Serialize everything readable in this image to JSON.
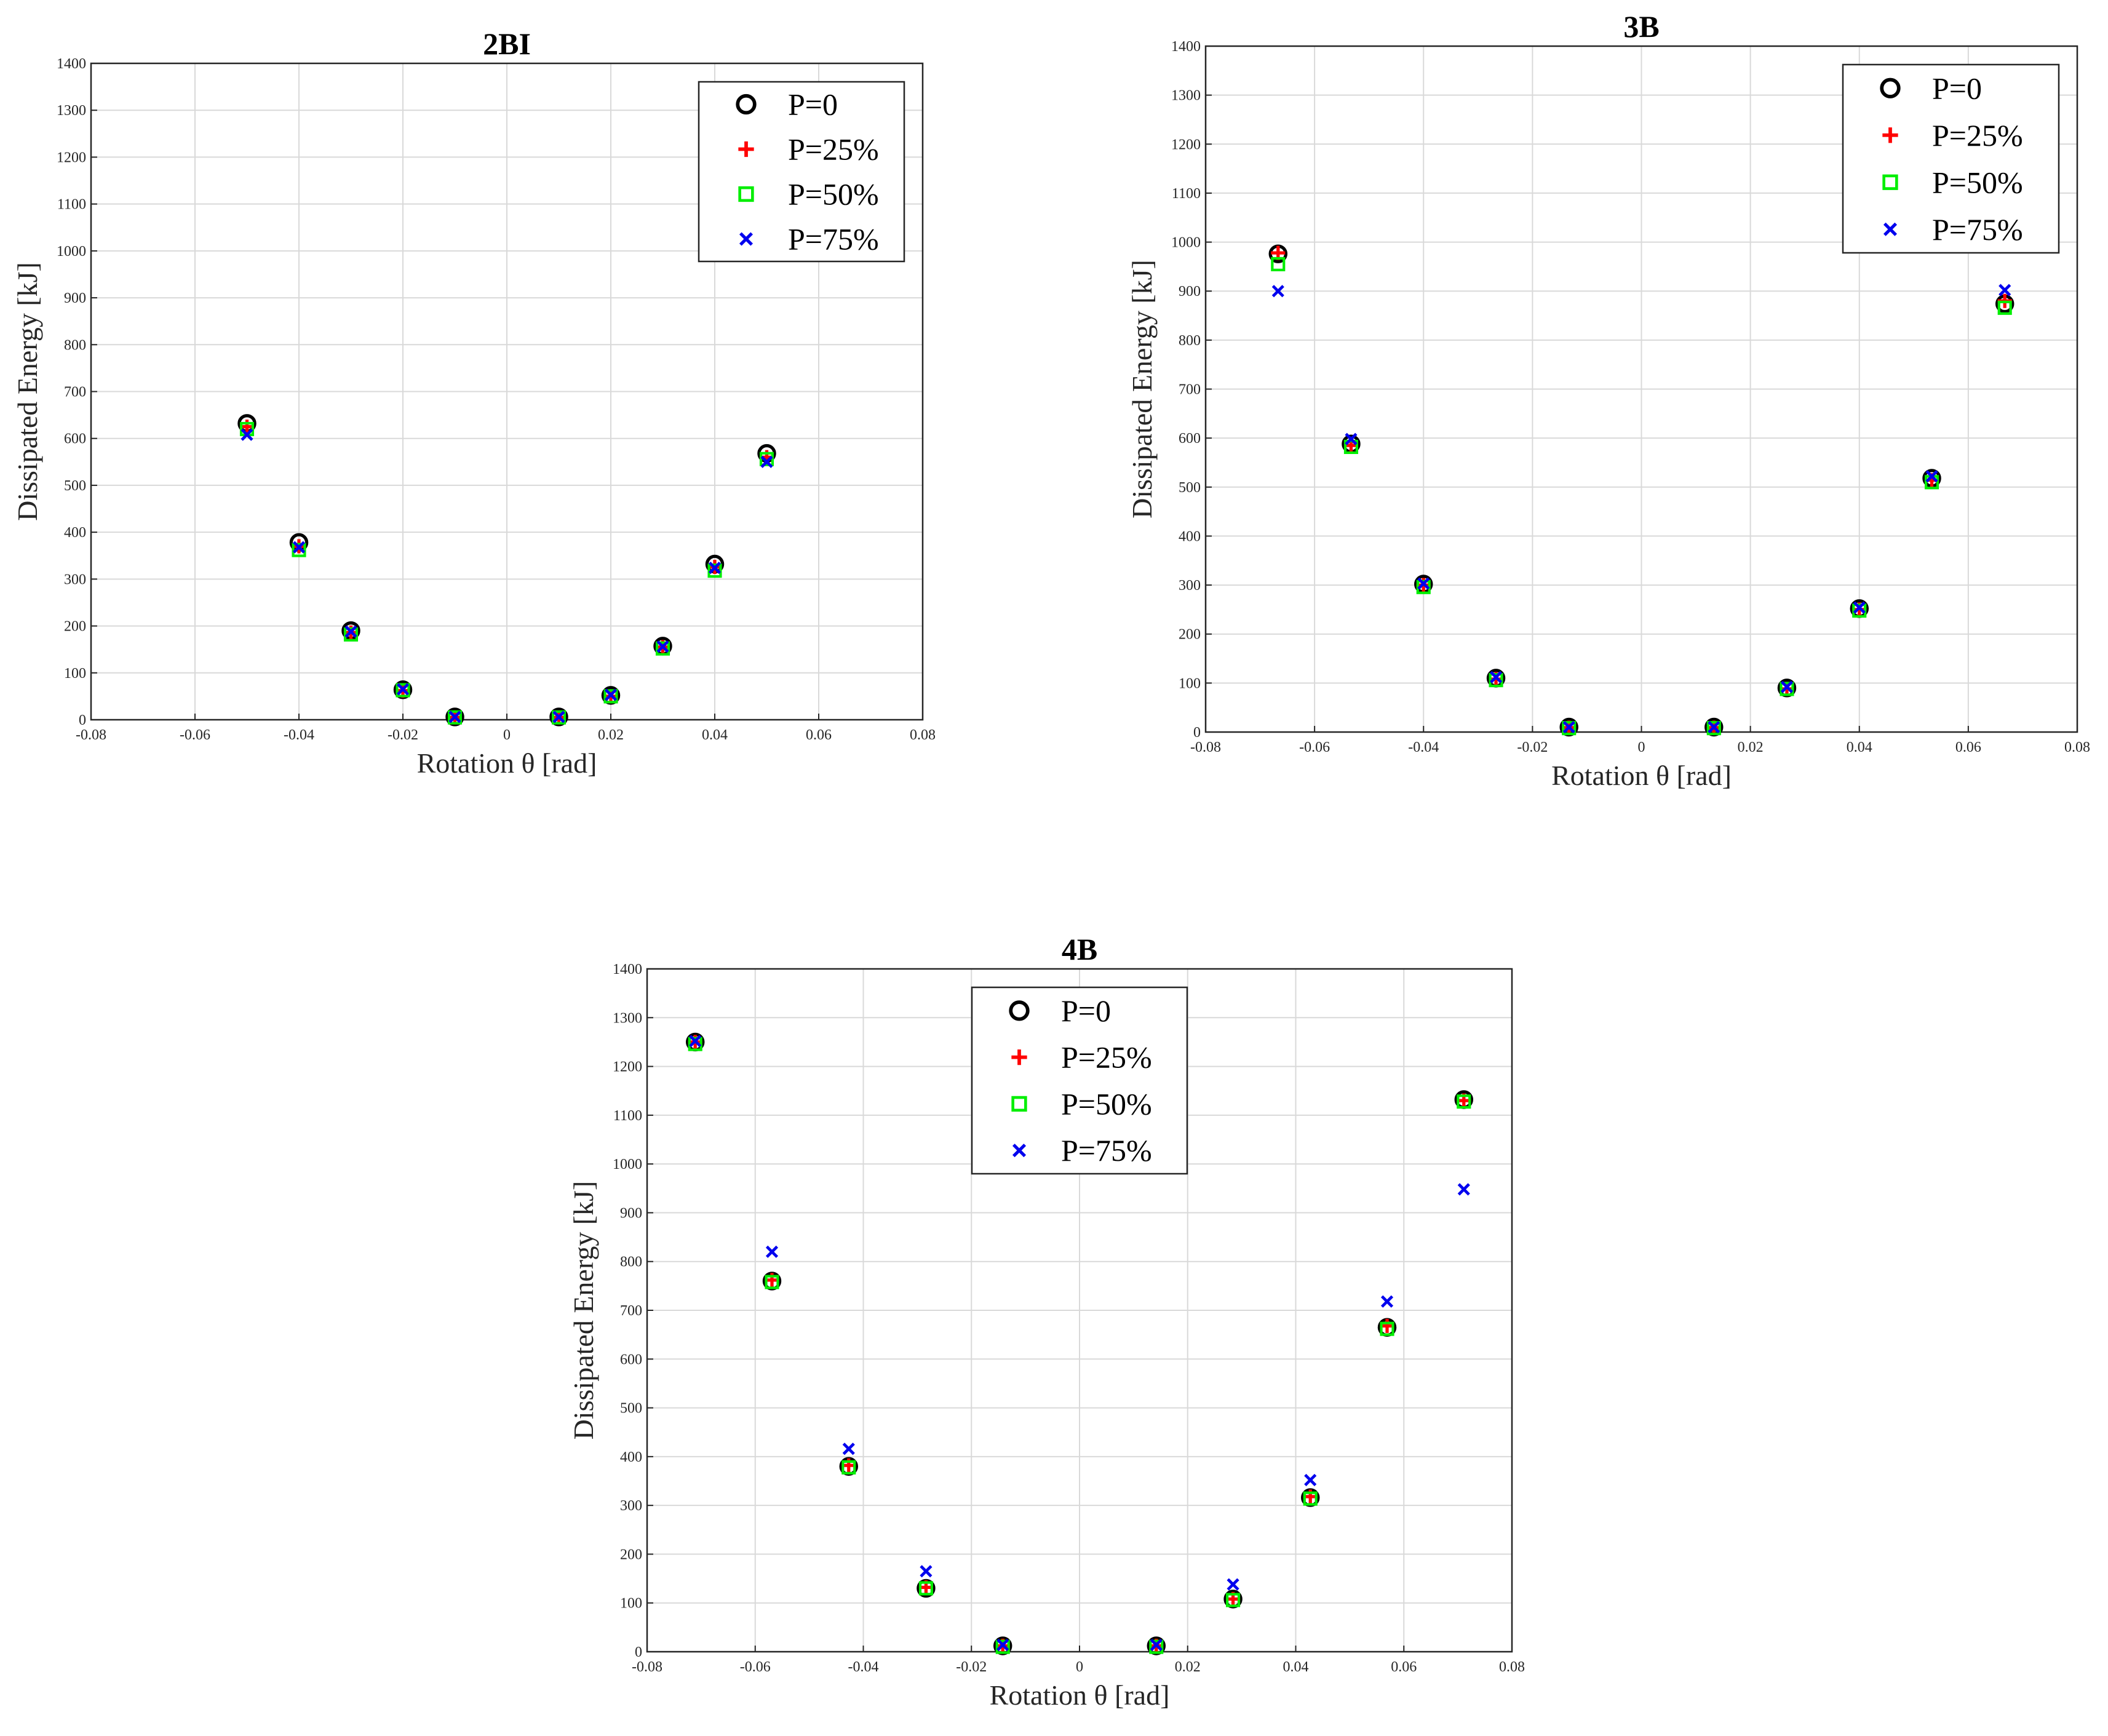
{
  "chart_data": [
    {
      "type": "scatter",
      "title": "2BI",
      "xlabel": "Rotation θ [rad]",
      "ylabel": "Dissipated Energy [kJ]",
      "xlim": [
        -0.08,
        0.08
      ],
      "ylim": [
        0,
        1400
      ],
      "xticks": [
        "-0.08",
        "-0.06",
        "-0.04",
        "-0.02",
        "0",
        "0.02",
        "0.04",
        "0.06",
        "0.08"
      ],
      "yticks": [
        "0",
        "100",
        "200",
        "300",
        "400",
        "500",
        "600",
        "700",
        "800",
        "900",
        "1000",
        "1100",
        "1200",
        "1300",
        "1400"
      ],
      "legend_position": "top-right",
      "x": [
        -0.05,
        -0.04,
        -0.03,
        -0.02,
        -0.01,
        0.01,
        0.02,
        0.03,
        0.04,
        0.05
      ],
      "series": [
        {
          "name": "P=0",
          "marker": "circle",
          "color": "#000000",
          "values": [
            632,
            378,
            190,
            64,
            6,
            6,
            52,
            157,
            332,
            568
          ]
        },
        {
          "name": "P=25%",
          "marker": "plus",
          "color": "#ff0000",
          "values": [
            625,
            370,
            186,
            62,
            5,
            5,
            50,
            155,
            326,
            560
          ]
        },
        {
          "name": "P=50%",
          "marker": "square",
          "color": "#00ee00",
          "values": [
            620,
            362,
            182,
            63,
            5,
            5,
            50,
            152,
            318,
            556
          ]
        },
        {
          "name": "P=75%",
          "marker": "x",
          "color": "#0000ee",
          "values": [
            608,
            368,
            188,
            65,
            6,
            6,
            53,
            156,
            324,
            550
          ]
        }
      ]
    },
    {
      "type": "scatter",
      "title": "3B",
      "xlabel": "Rotation θ [rad]",
      "ylabel": "Dissipated Energy [kJ]",
      "xlim": [
        -0.08,
        0.08
      ],
      "ylim": [
        0,
        1400
      ],
      "xticks": [
        "-0.08",
        "-0.06",
        "-0.04",
        "-0.02",
        "0",
        "0.02",
        "0.04",
        "0.06",
        "0.08"
      ],
      "yticks": [
        "0",
        "100",
        "200",
        "300",
        "400",
        "500",
        "600",
        "700",
        "800",
        "900",
        "1000",
        "1100",
        "1200",
        "1300",
        "1400"
      ],
      "legend_position": "top-right",
      "x": [
        -0.0667,
        -0.0533,
        -0.04,
        -0.0267,
        -0.0133,
        0.0133,
        0.0267,
        0.04,
        0.0533,
        0.0667
      ],
      "series": [
        {
          "name": "P=0",
          "marker": "circle",
          "color": "#000000",
          "values": [
            976,
            588,
            302,
            110,
            10,
            10,
            90,
            252,
            518,
            874
          ]
        },
        {
          "name": "P=25%",
          "marker": "plus",
          "color": "#ff0000",
          "values": [
            978,
            585,
            300,
            108,
            9,
            9,
            88,
            250,
            514,
            880
          ]
        },
        {
          "name": "P=50%",
          "marker": "square",
          "color": "#00ee00",
          "values": [
            955,
            582,
            296,
            106,
            8,
            8,
            88,
            248,
            510,
            866
          ]
        },
        {
          "name": "P=75%",
          "marker": "x",
          "color": "#0000ee",
          "values": [
            900,
            598,
            303,
            112,
            10,
            10,
            92,
            254,
            522,
            902
          ]
        }
      ]
    },
    {
      "type": "scatter",
      "title": "4B",
      "xlabel": "Rotation θ [rad]",
      "ylabel": "Dissipated Energy [kJ]",
      "xlim": [
        -0.08,
        0.08
      ],
      "ylim": [
        0,
        1400
      ],
      "xticks": [
        "-0.08",
        "-0.06",
        "-0.04",
        "-0.02",
        "0",
        "0.02",
        "0.04",
        "0.06",
        "0.08"
      ],
      "yticks": [
        "0",
        "100",
        "200",
        "300",
        "400",
        "500",
        "600",
        "700",
        "800",
        "900",
        "1000",
        "1100",
        "1200",
        "1300",
        "1400"
      ],
      "legend_position": "top-center",
      "x": [
        -0.0711,
        -0.0569,
        -0.0427,
        -0.0284,
        -0.0142,
        0.0142,
        0.0284,
        0.0427,
        0.0569,
        0.0711
      ],
      "series": [
        {
          "name": "P=0",
          "marker": "circle",
          "color": "#000000",
          "values": [
            1250,
            760,
            380,
            130,
            12,
            12,
            108,
            316,
            665,
            1132
          ]
        },
        {
          "name": "P=25%",
          "marker": "plus",
          "color": "#ff0000",
          "values": [
            1250,
            762,
            382,
            132,
            12,
            12,
            108,
            318,
            668,
            1130
          ]
        },
        {
          "name": "P=50%",
          "marker": "square",
          "color": "#00ee00",
          "values": [
            1246,
            758,
            378,
            130,
            10,
            10,
            106,
            314,
            662,
            1128
          ]
        },
        {
          "name": "P=75%",
          "marker": "x",
          "color": "#0000ee",
          "values": [
            1252,
            820,
            416,
            165,
            14,
            14,
            138,
            352,
            718,
            948
          ]
        }
      ]
    }
  ]
}
